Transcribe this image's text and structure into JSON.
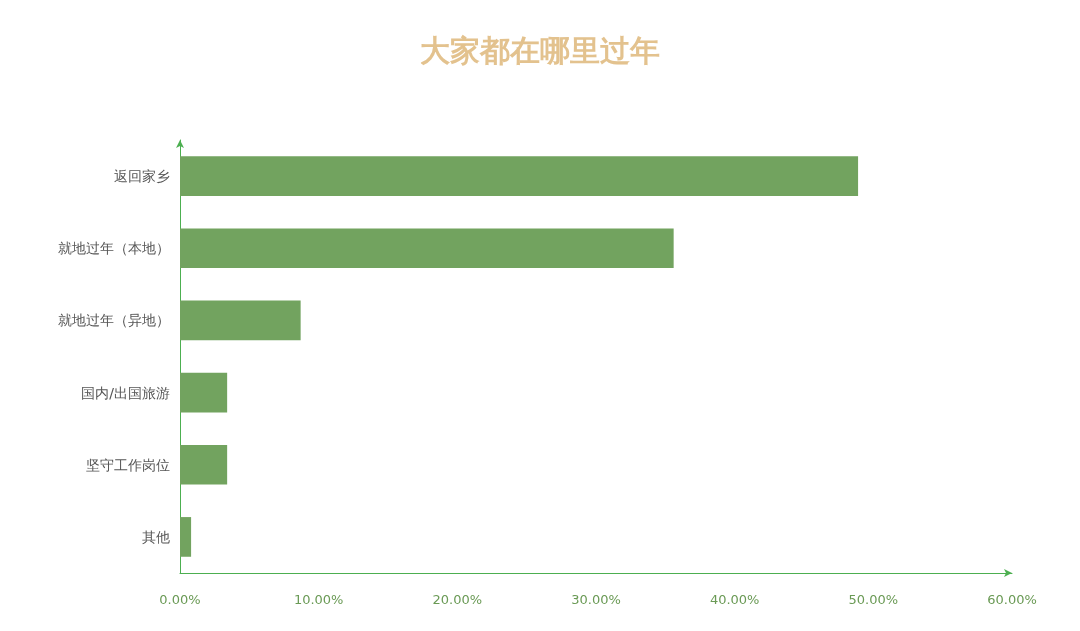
{
  "chart_data": {
    "type": "bar",
    "title": "大家都在哪里过年",
    "orientation": "horizontal",
    "categories": [
      "返回家乡",
      "就地过年（本地）",
      "就地过年（异地）",
      "国内/出国旅游",
      "坚守工作岗位",
      "其他"
    ],
    "values": [
      48.9,
      35.6,
      8.7,
      3.4,
      3.4,
      0.8
    ],
    "color": "#72a35f",
    "xlim": [
      0,
      60
    ],
    "xticks": [
      {
        "value": 0,
        "label": "0.00%"
      },
      {
        "value": 10,
        "label": "10.00%"
      },
      {
        "value": 20,
        "label": "20.00%"
      },
      {
        "value": 30,
        "label": "30.00%"
      },
      {
        "value": 40,
        "label": "40.00%"
      },
      {
        "value": 50,
        "label": "50.00%"
      },
      {
        "value": 60,
        "label": "60.00%"
      }
    ],
    "grid": false
  }
}
